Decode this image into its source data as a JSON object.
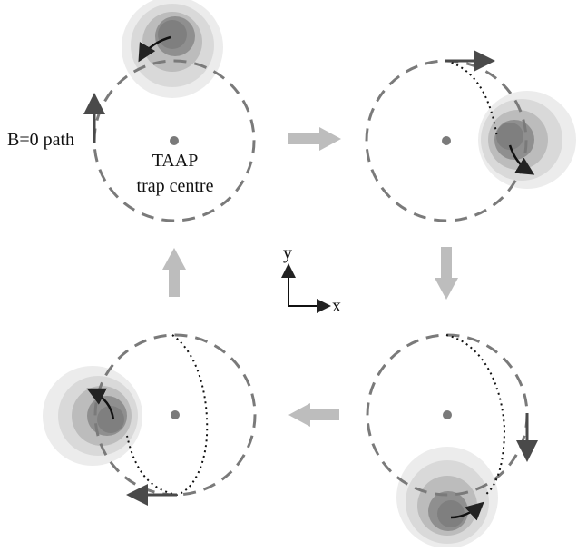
{
  "labels": {
    "b0_path": "B=0 path",
    "trap_centre_line1": "TAAP",
    "trap_centre_line2": "trap centre",
    "axis_y": "y",
    "axis_x": "x"
  },
  "colors": {
    "dashed_orbit": "#7a7a7a",
    "centre_dot": "#7a7a7a",
    "flow_arrow": "#bdbdbd",
    "direction_arrow": "#4a4a4a",
    "dotted_path": "#111111",
    "blob_outer": "#e6e6e6",
    "blob_mid": "#cfcfcf",
    "blob_inner": "#a9a9a9",
    "blob_core": "#8c8c8c"
  }
}
